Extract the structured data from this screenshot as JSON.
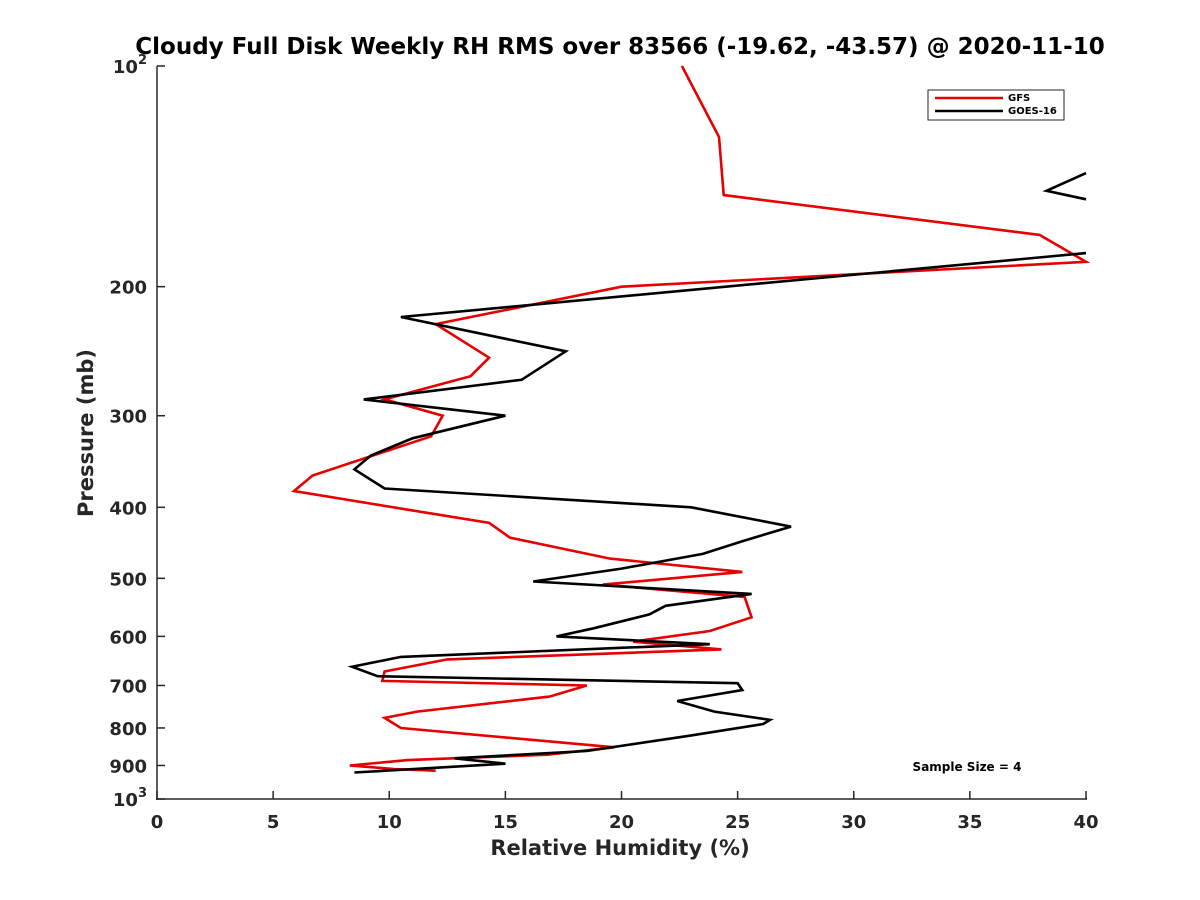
{
  "chart_data": {
    "type": "line",
    "title": "Cloudy Full Disk Weekly RH RMS over 83566 (-19.62, -43.57) @ 2020-11-10",
    "xlabel": "Relative Humidity (%)",
    "ylabel": "Pressure (mb)",
    "xlim": [
      0,
      40
    ],
    "ylim": [
      100,
      1000
    ],
    "y_scale": "log",
    "y_reversed": true,
    "grid": false,
    "legend_position": "top-right",
    "x_ticks": [
      "0",
      "5",
      "10",
      "15",
      "20",
      "25",
      "30",
      "35",
      "40"
    ],
    "y_ticks": [
      {
        "value": 100,
        "base": "10",
        "exp": "2"
      },
      {
        "value": 200,
        "label": "200"
      },
      {
        "value": 300,
        "label": "300"
      },
      {
        "value": 400,
        "label": "400"
      },
      {
        "value": 500,
        "label": "500"
      },
      {
        "value": 600,
        "label": "600"
      },
      {
        "value": 700,
        "label": "700"
      },
      {
        "value": 800,
        "label": "800"
      },
      {
        "value": 900,
        "label": "900"
      },
      {
        "value": 1000,
        "base": "10",
        "exp": "3"
      }
    ],
    "series": [
      {
        "name": "GFS",
        "color": "#e60000",
        "points": [
          [
            22.6,
            100
          ],
          [
            24.2,
            125
          ],
          [
            24.4,
            150
          ],
          [
            38.0,
            170
          ],
          [
            40.0,
            185
          ],
          [
            20.0,
            200
          ],
          [
            12.0,
            225
          ],
          [
            14.3,
            250
          ],
          [
            13.5,
            265
          ],
          [
            9.8,
            285
          ],
          [
            12.3,
            300
          ],
          [
            11.8,
            320
          ],
          [
            6.7,
            362
          ],
          [
            5.9,
            380
          ],
          [
            10.8,
            403
          ],
          [
            14.3,
            420
          ],
          [
            15.2,
            440
          ],
          [
            19.5,
            470
          ],
          [
            25.2,
            490
          ],
          [
            19.2,
            510
          ],
          [
            25.3,
            530
          ],
          [
            25.6,
            565
          ],
          [
            23.8,
            590
          ],
          [
            20.5,
            610
          ],
          [
            24.3,
            625
          ],
          [
            12.5,
            645
          ],
          [
            9.8,
            670
          ],
          [
            9.7,
            690
          ],
          [
            18.5,
            700
          ],
          [
            16.9,
            725
          ],
          [
            11.2,
            760
          ],
          [
            9.8,
            775
          ],
          [
            10.5,
            800
          ],
          [
            19.7,
            850
          ],
          [
            16.8,
            870
          ],
          [
            10.8,
            885
          ],
          [
            8.3,
            900
          ],
          [
            10.2,
            910
          ],
          [
            12.0,
            915
          ]
        ]
      },
      {
        "name": "GOES-16",
        "color": "#000000",
        "points": [
          [
            40.0,
            140
          ],
          [
            38.3,
            148
          ],
          [
            40.0,
            152
          ],
          null,
          [
            40.0,
            180
          ],
          [
            10.5,
            220
          ],
          [
            17.6,
            245
          ],
          [
            15.7,
            268
          ],
          [
            8.9,
            285
          ],
          [
            15.0,
            300
          ],
          [
            11.0,
            322
          ],
          [
            9.2,
            340
          ],
          [
            8.5,
            355
          ],
          [
            9.8,
            377
          ],
          [
            23.0,
            400
          ],
          [
            27.3,
            425
          ],
          [
            25.2,
            445
          ],
          [
            23.5,
            463
          ],
          [
            20.0,
            485
          ],
          [
            16.2,
            505
          ],
          [
            25.6,
            525
          ],
          [
            21.9,
            545
          ],
          [
            21.2,
            560
          ],
          [
            18.8,
            585
          ],
          [
            17.2,
            600
          ],
          [
            23.8,
            615
          ],
          [
            10.5,
            640
          ],
          [
            8.4,
            660
          ],
          [
            9.5,
            680
          ],
          [
            25.0,
            695
          ],
          [
            25.2,
            710
          ],
          [
            22.4,
            735
          ],
          [
            24.0,
            760
          ],
          [
            26.4,
            780
          ],
          [
            26.1,
            790
          ],
          [
            22.9,
            820
          ],
          [
            18.5,
            860
          ],
          [
            12.8,
            880
          ],
          [
            15.0,
            895
          ],
          [
            8.5,
            920
          ]
        ]
      }
    ],
    "annotations": [
      "Sample Size = 4"
    ]
  }
}
